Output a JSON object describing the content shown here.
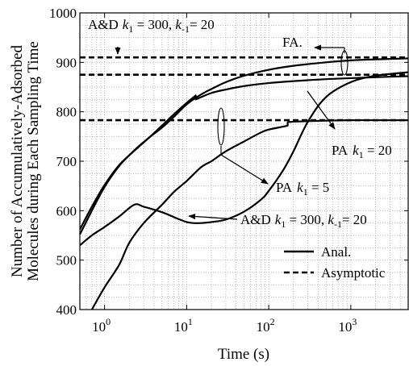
{
  "chart_data": {
    "type": "line",
    "xlabel": "Time (s)",
    "ylabel_lines": [
      "Number of Accumulatively-Adsorbed",
      "Molecules during Each Sampling Time"
    ],
    "x_scale": "log",
    "xlim": [
      0.5,
      5000
    ],
    "ylim": [
      400,
      1000
    ],
    "y_ticks": [
      400,
      500,
      600,
      700,
      800,
      900,
      1000
    ],
    "y_tick_labels": [
      "400",
      "500",
      "600",
      "700",
      "800",
      "900",
      "1000"
    ],
    "x_ticks": [
      1,
      10,
      100,
      1000
    ],
    "x_tick_labels": [
      {
        "base": "10",
        "exp": "0"
      },
      {
        "base": "10",
        "exp": "1"
      },
      {
        "base": "10",
        "exp": "2"
      },
      {
        "base": "10",
        "exp": "3"
      }
    ],
    "grid": true,
    "asymptotes": [
      {
        "y": 910
      },
      {
        "y": 875
      },
      {
        "y": 783
      }
    ],
    "series": [
      {
        "x": [
          0.5,
          0.7,
          1,
          1.5,
          2.3,
          3.5,
          5,
          7,
          10,
          15,
          20,
          30,
          50,
          100,
          200,
          500,
          1000,
          2000,
          5000
        ],
        "y": [
          552,
          600,
          648,
          690,
          722,
          748,
          768,
          790,
          815,
          835,
          846,
          860,
          873,
          885,
          893,
          900,
          904,
          906,
          908
        ]
      },
      {
        "x": [
          0.5,
          0.7,
          1,
          1.5,
          2.3,
          3.5,
          5,
          7,
          10,
          12.9,
          12.9,
          20,
          30,
          50,
          100,
          200,
          500,
          1000,
          2000,
          5000
        ],
        "y": [
          562,
          608,
          652,
          692,
          721,
          748,
          772,
          795,
          818,
          833,
          825,
          838,
          845,
          852,
          858,
          862,
          866,
          868,
          870,
          872
        ]
      },
      {
        "x": [
          0.5,
          0.7,
          1,
          1.5,
          2.3,
          3,
          5,
          8,
          10,
          12,
          15,
          20,
          30,
          50,
          80,
          100,
          150,
          200,
          300,
          500,
          1000,
          2000,
          5000
        ],
        "y": [
          530,
          550,
          567,
          588,
          612,
          608,
          597,
          583,
          577,
          575,
          575,
          577,
          582,
          598,
          622,
          640,
          682,
          720,
          780,
          830,
          860,
          873,
          880
        ]
      },
      {
        "x": [
          0.7,
          1,
          1.5,
          2,
          3,
          5,
          7,
          10,
          15,
          20,
          30,
          50,
          80,
          100,
          150,
          170,
          170,
          200,
          300,
          500,
          1000,
          2000,
          5000
        ],
        "y": [
          400,
          445,
          490,
          535,
          575,
          612,
          638,
          660,
          688,
          700,
          720,
          740,
          758,
          764,
          770,
          772,
          779,
          780,
          781,
          782,
          783,
          783,
          783
        ]
      }
    ],
    "annotations": {
      "ad_top": {
        "prefix": "A&D",
        "k": "k",
        "sub1": "1",
        "val1": " = 300, ",
        "sub2": "-1",
        "val2": "= 20"
      },
      "fa": "FA.",
      "pa20": {
        "prefix": "PA",
        "k": "k",
        "sub": "1",
        "val": " = 20"
      },
      "pa5": {
        "prefix": "PA",
        "k": "k",
        "sub": "1",
        "val": " = 5"
      },
      "ad_mid": {
        "prefix": "A&D",
        "k": "k",
        "sub1": "1",
        "val1": " = 300, ",
        "sub2": "-1",
        "val2": "= 20"
      }
    },
    "legend": {
      "position": "bottom-right",
      "items": [
        {
          "label": "Anal.",
          "style": "solid"
        },
        {
          "label": "Asymptotic",
          "style": "dashed"
        }
      ]
    }
  }
}
